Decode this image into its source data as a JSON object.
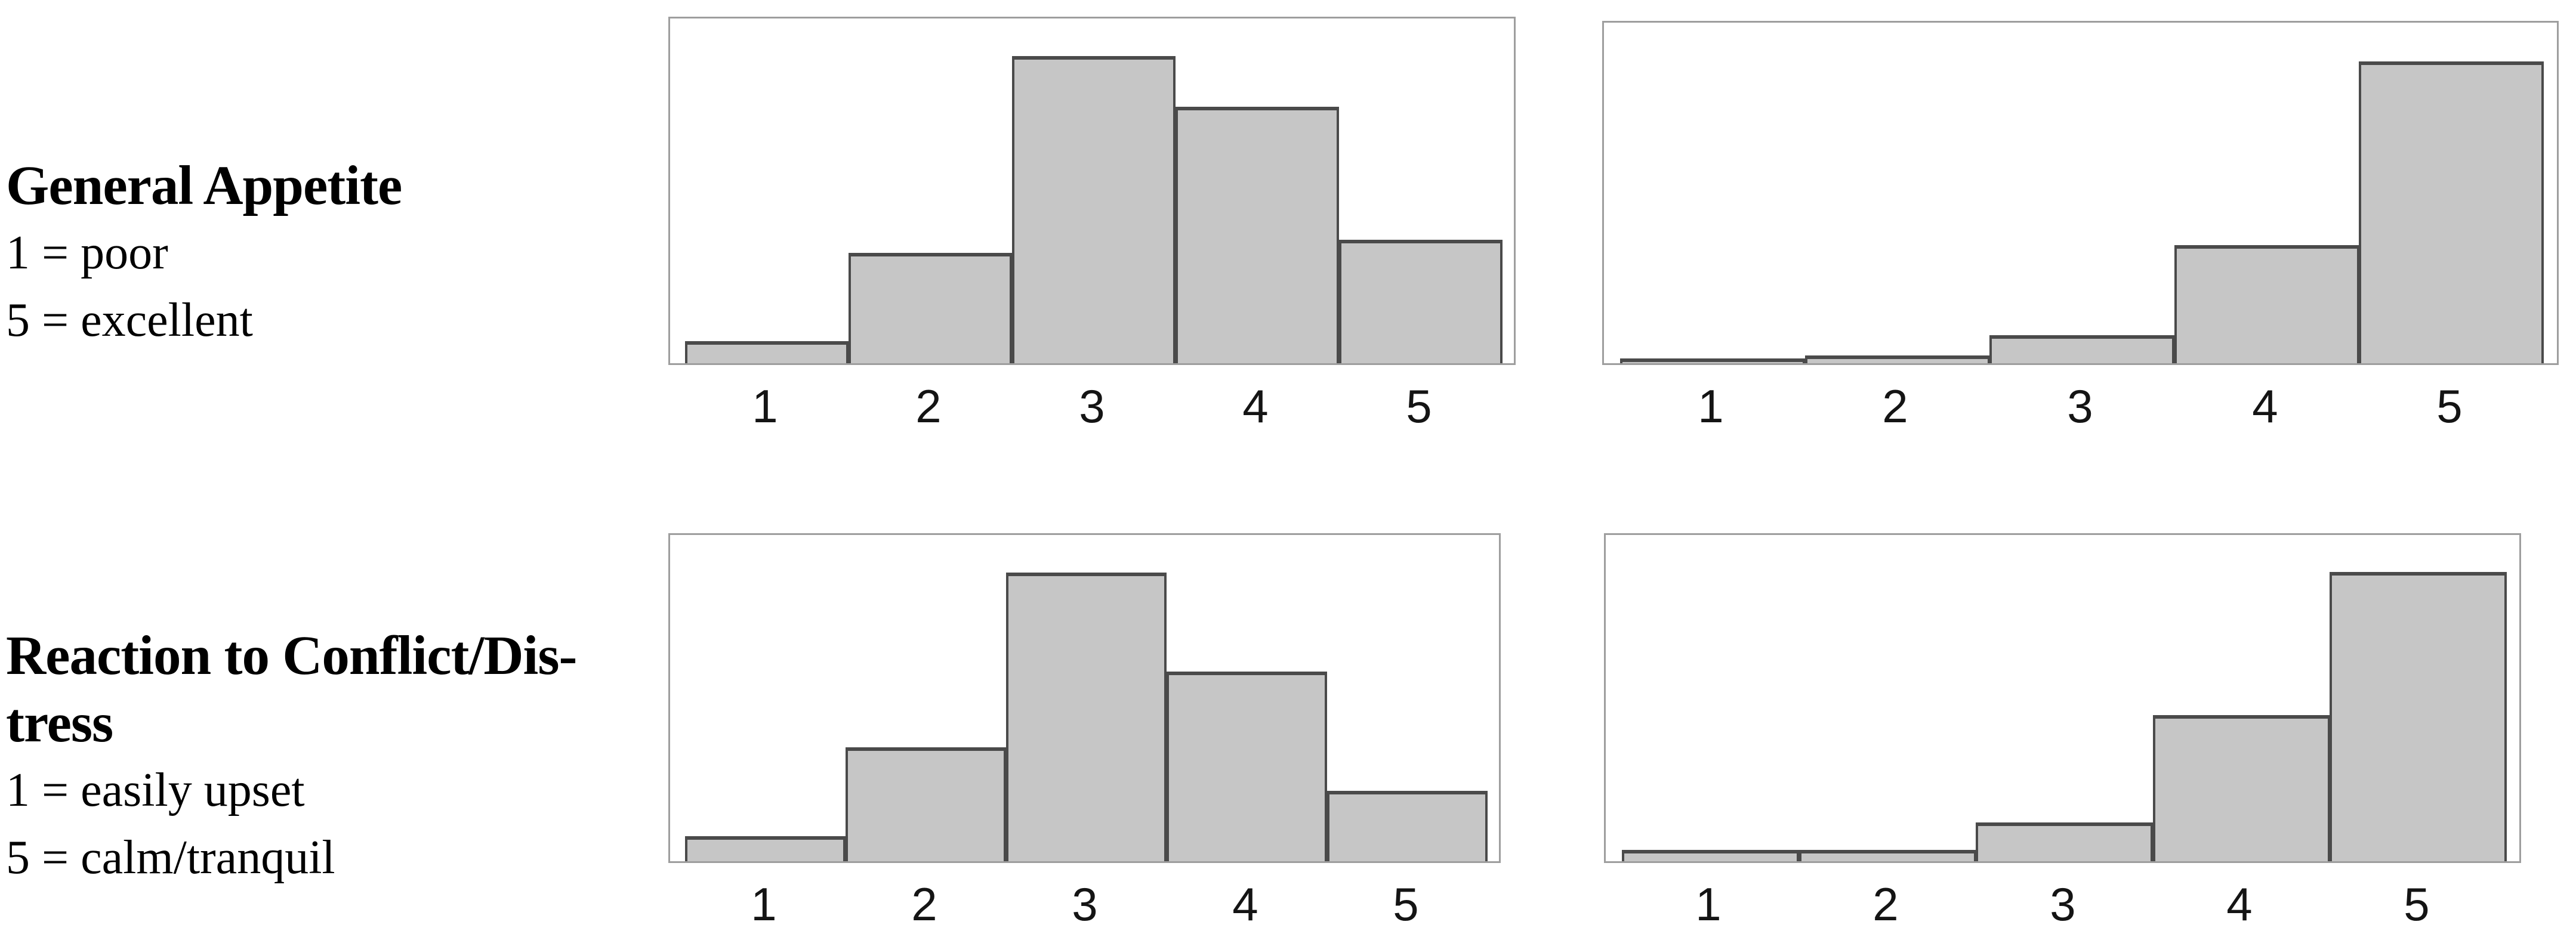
{
  "page": {
    "background": "#ffffff"
  },
  "rows": [
    {
      "label": {
        "title_lines": [
          "General Appetite"
        ],
        "scale_lines": [
          "1 = poor",
          "5 = excellent"
        ]
      }
    },
    {
      "label": {
        "title_lines": [
          "Reaction to Conflict/Dis-",
          "tress"
        ],
        "scale_lines": [
          "1 = easily upset",
          "5 = calm/tranquil"
        ]
      }
    }
  ],
  "chart_data": [
    {
      "type": "bar",
      "panel": "general-appetite-left",
      "group_title": "General Appetite",
      "categories": [
        "1",
        "2",
        "3",
        "4",
        "5"
      ],
      "values": [
        6.3,
        31.6,
        88.2,
        73.6,
        35.4
      ],
      "value_unit": "percent of plot height",
      "xlabel": "",
      "ylabel": "",
      "y_axis": "none",
      "grid": false,
      "bar_fill": "#c6c6c6",
      "bar_border": "#4a4a4a",
      "frame_border": "#9e9e9e"
    },
    {
      "type": "bar",
      "panel": "general-appetite-right",
      "group_title": "General Appetite",
      "categories": [
        "1",
        "2",
        "3",
        "4",
        "5"
      ],
      "values": [
        1.4,
        2.2,
        8.1,
        34.3,
        87.7
      ],
      "value_unit": "percent of plot height",
      "xlabel": "",
      "ylabel": "",
      "y_axis": "none",
      "grid": false,
      "bar_fill": "#c6c6c6",
      "bar_border": "#4a4a4a",
      "frame_border": "#9e9e9e"
    },
    {
      "type": "bar",
      "panel": "reaction-conflict-left",
      "group_title": "Reaction to Conflict/Distress",
      "categories": [
        "1",
        "2",
        "3",
        "4",
        "5"
      ],
      "values": [
        7.6,
        34.6,
        87.5,
        57.5,
        21.3
      ],
      "value_unit": "percent of plot height",
      "xlabel": "",
      "ylabel": "",
      "y_axis": "none",
      "grid": false,
      "bar_fill": "#c6c6c6",
      "bar_border": "#4a4a4a",
      "frame_border": "#9e9e9e"
    },
    {
      "type": "bar",
      "panel": "reaction-conflict-right",
      "group_title": "Reaction to Conflict/Distress",
      "categories": [
        "1",
        "2",
        "3",
        "4",
        "5"
      ],
      "values": [
        3.4,
        3.4,
        11.7,
        44.3,
        87.7
      ],
      "value_unit": "percent of plot height",
      "xlabel": "",
      "ylabel": "",
      "y_axis": "none",
      "grid": false,
      "bar_fill": "#c6c6c6",
      "bar_border": "#4a4a4a",
      "frame_border": "#9e9e9e"
    }
  ]
}
